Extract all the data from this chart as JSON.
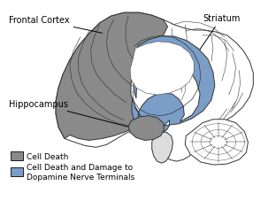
{
  "background_color": "#ffffff",
  "brain_outline_color": "#333333",
  "brain_fill_color": "#ffffff",
  "gray_color": "#8a8a8a",
  "blue_color": "#7a9ec8",
  "label_frontal_cortex": "Frontal Cortex",
  "label_striatum": "Striatum",
  "label_hippocampus": "Hippocampus",
  "legend_gray": "Cell Death",
  "legend_blue": "Cell Death and Damage to\nDopamine Nerve Terminals",
  "text_fontsize": 7,
  "legend_fontsize": 6.5
}
